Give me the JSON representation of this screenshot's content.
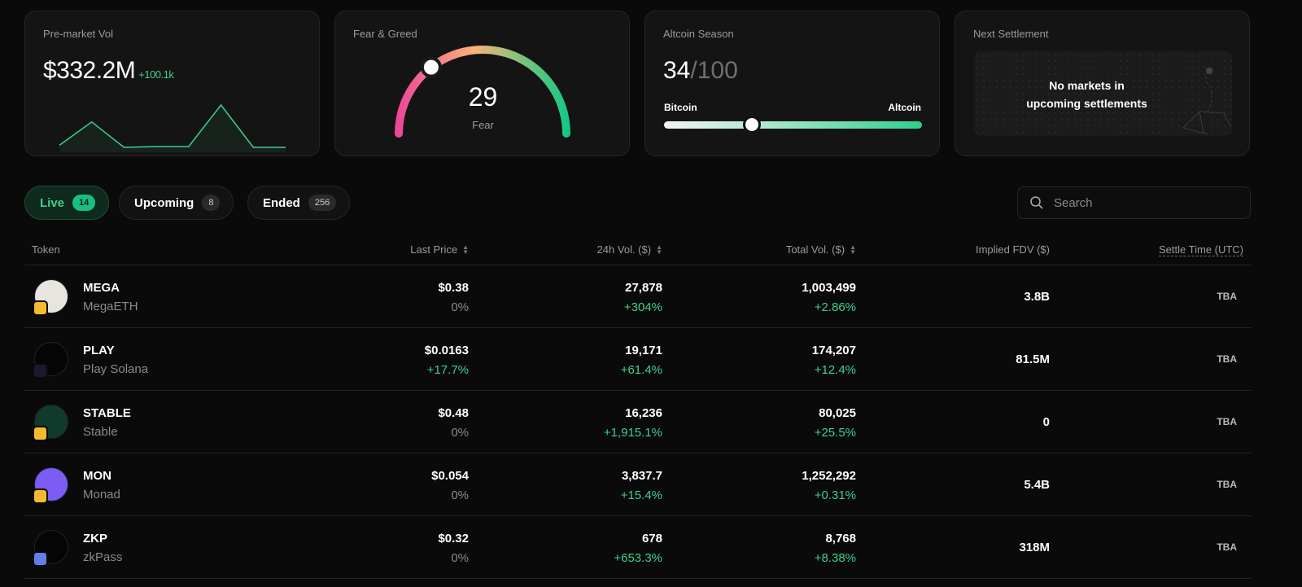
{
  "cards": {
    "premarket": {
      "title": "Pre-market Vol",
      "value": "$332.2M",
      "delta": "+100.1k",
      "sparkline": [
        0.05,
        0.6,
        0.0,
        0.02,
        0.02,
        1.0,
        0.0,
        0.0
      ],
      "color": "#3fcf8e"
    },
    "fear_greed": {
      "title": "Fear & Greed",
      "value": "29",
      "label": "Fear",
      "max": 100
    },
    "altcoin": {
      "title": "Altcoin Season",
      "value": "34",
      "max": "/100",
      "left_label": "Bitcoin",
      "right_label": "Altcoin",
      "fraction": 0.34
    },
    "settlement": {
      "title": "Next Settlement",
      "empty_line1": "No markets in",
      "empty_line2": "upcoming settlements"
    }
  },
  "tabs": [
    {
      "label": "Live",
      "count": "14",
      "active": true
    },
    {
      "label": "Upcoming",
      "count": "8"
    },
    {
      "label": "Ended",
      "count": "256"
    }
  ],
  "search": {
    "placeholder": "Search",
    "value": ""
  },
  "table": {
    "headers": {
      "token": "Token",
      "last_price": "Last Price",
      "vol_24h": "24h Vol. ($)",
      "total_vol": "Total Vol. ($)",
      "fdv": "Implied FDV ($)",
      "settle": "Settle Time (UTC)"
    },
    "rows": [
      {
        "symbol": "MEGA",
        "name": "MegaETH",
        "price": "$0.38",
        "price_change": "0%",
        "vol24": "27,878",
        "vol24_change": "+304%",
        "total": "1,003,499",
        "total_change": "+2.86%",
        "fdv": "3.8B",
        "settle": "TBA",
        "logo_color": "#e8e4e0",
        "chain": "bnb-icon"
      },
      {
        "symbol": "PLAY",
        "name": "Play Solana",
        "price": "$0.0163",
        "price_change": "+17.7%",
        "vol24": "19,171",
        "vol24_change": "+61.4%",
        "total": "174,207",
        "total_change": "+12.4%",
        "fdv": "81.5M",
        "settle": "TBA",
        "logo_color": "#050505",
        "chain": "solana-icon"
      },
      {
        "symbol": "STABLE",
        "name": "Stable",
        "price": "$0.48",
        "price_change": "0%",
        "vol24": "16,236",
        "vol24_change": "+1,915.1%",
        "total": "80,025",
        "total_change": "+25.5%",
        "fdv": "0",
        "settle": "TBA",
        "logo_color": "#0f3a2c",
        "chain": "bnb-icon"
      },
      {
        "symbol": "MON",
        "name": "Monad",
        "price": "$0.054",
        "price_change": "0%",
        "vol24": "3,837.7",
        "vol24_change": "+15.4%",
        "total": "1,252,292",
        "total_change": "+0.31%",
        "fdv": "5.4B",
        "settle": "TBA",
        "logo_color": "#7b5cf5",
        "chain": "bnb-icon"
      },
      {
        "symbol": "ZKP",
        "name": "zkPass",
        "price": "$0.32",
        "price_change": "0%",
        "vol24": "678",
        "vol24_change": "+653.3%",
        "total": "8,768",
        "total_change": "+8.38%",
        "fdv": "318M",
        "settle": "TBA",
        "logo_color": "#050505",
        "chain": "ethereum-icon"
      }
    ]
  }
}
